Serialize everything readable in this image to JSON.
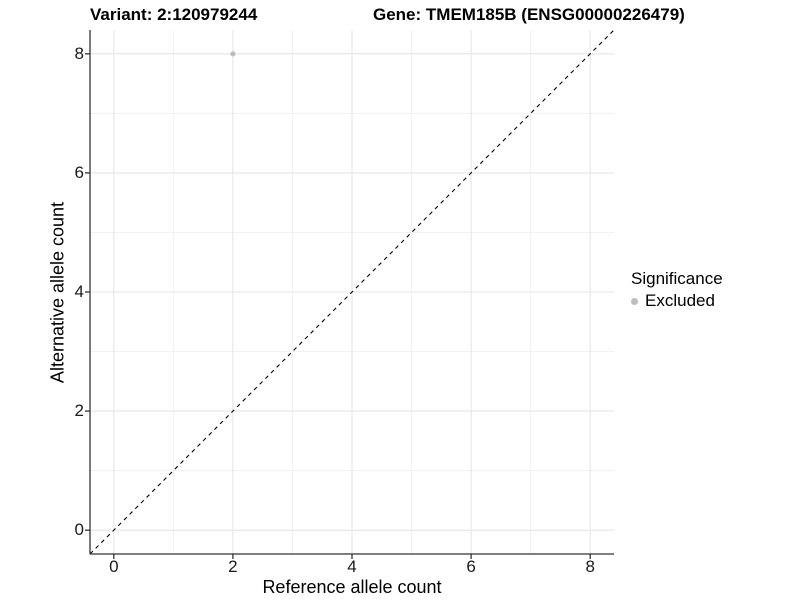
{
  "chart_data": {
    "type": "scatter",
    "title_left": "Variant: 2:120979244",
    "title_right": "Gene: TMEM185B (ENSG00000226479)",
    "xlabel": "Reference allele count",
    "ylabel": "Alternative allele count",
    "xlim": [
      -0.4,
      8.4
    ],
    "ylim": [
      -0.4,
      8.4
    ],
    "x_ticks": [
      0,
      2,
      4,
      6,
      8
    ],
    "y_ticks": [
      0,
      2,
      4,
      6,
      8
    ],
    "x_minor_ticks": [
      1,
      3,
      5,
      7
    ],
    "y_minor_ticks": [
      1,
      3,
      5,
      7
    ],
    "grid": "major and minor gridlines, light gray on white",
    "points": [
      {
        "x": 2,
        "y": 8,
        "significance": "Excluded"
      }
    ],
    "reference_line": {
      "style": "dashed",
      "slope": 1,
      "intercept": 0
    },
    "legend": {
      "title": "Significance",
      "position": "right",
      "entries": [
        {
          "label": "Excluded",
          "color": "#bdbdbd"
        }
      ]
    },
    "colors": {
      "point_excluded": "#bdbdbd",
      "grid_major": "#e5e5e5",
      "grid_minor": "#f0f0f0",
      "axis_line": "#333333",
      "reference_line": "#000000",
      "text": "#000000"
    }
  }
}
